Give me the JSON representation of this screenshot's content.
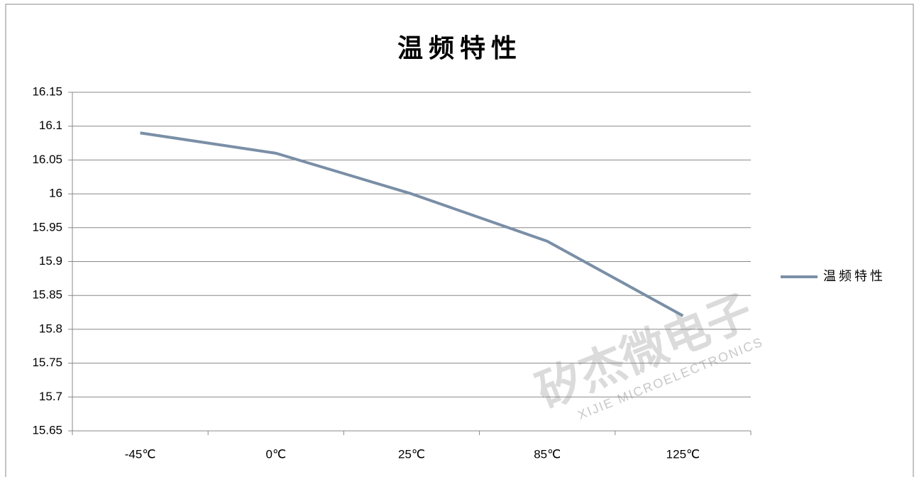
{
  "chart_data": {
    "type": "line",
    "title": "温频特性",
    "categories": [
      "-45℃",
      "0℃",
      "25℃",
      "85℃",
      "125℃"
    ],
    "series": [
      {
        "name": "温频特性",
        "color": "#7a8fa6",
        "values": [
          16.09,
          16.06,
          16.0,
          15.93,
          15.82
        ]
      }
    ],
    "ylim": [
      15.65,
      16.15
    ],
    "yticks": [
      15.65,
      15.7,
      15.75,
      15.8,
      15.85,
      15.9,
      15.95,
      16,
      16.05,
      16.1,
      16.15
    ],
    "grid": true,
    "legend": "right",
    "watermark": "矽杰微电子",
    "watermark_sub": "XIJIE MICROELECTRONICS"
  }
}
